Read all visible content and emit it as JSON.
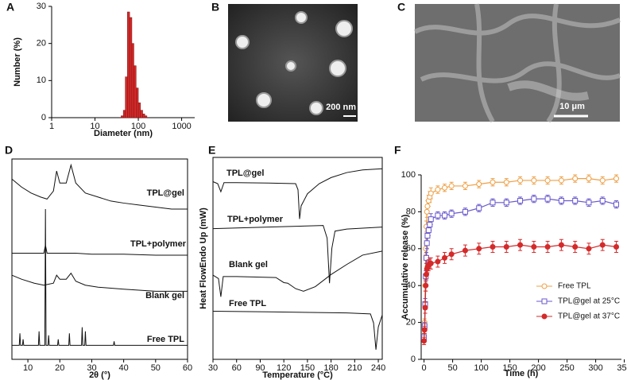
{
  "chart_data": [
    {
      "label": "A",
      "type": "histogram",
      "xlabel": "Diameter (nm)",
      "ylabel": "Number (%)",
      "xlog": true,
      "xlim": [
        1,
        2000
      ],
      "ylim": [
        0,
        30
      ],
      "xticks": [
        1,
        10,
        100,
        1000
      ],
      "yticks": [
        0,
        10,
        20,
        30
      ],
      "color": "#d42a2a",
      "frame": false,
      "bins": [
        40,
        45,
        50,
        56,
        63,
        71,
        79,
        89,
        100,
        112,
        126,
        141,
        158
      ],
      "counts": [
        0.5,
        2,
        11,
        28.5,
        27,
        20,
        14,
        8,
        4,
        2,
        1,
        0.5
      ]
    },
    {
      "label": "D",
      "type": "line",
      "xlabel": "2θ (°)",
      "xlim": [
        5,
        60
      ],
      "ylim": [
        0,
        100
      ],
      "xticks": [
        10,
        20,
        30,
        40,
        50,
        60
      ],
      "frame": true,
      "series": [
        {
          "name": "TPL@gel",
          "color": "#111111",
          "x": [
            5,
            8,
            11,
            14,
            16,
            18,
            19,
            20,
            22,
            23.5,
            25,
            28,
            32,
            36,
            40,
            45,
            50,
            55,
            60
          ],
          "values": [
            90,
            86,
            83,
            81,
            80,
            84,
            94,
            88,
            88,
            97,
            88,
            83,
            81,
            79,
            78,
            77,
            76,
            75,
            75
          ]
        },
        {
          "name": "TPL+polymer",
          "color": "#111111",
          "x": [
            5,
            10,
            15,
            15.5,
            16,
            20,
            25,
            30,
            40,
            50,
            60
          ],
          "values": [
            53,
            53,
            53,
            57,
            53,
            53,
            53,
            52.5,
            52.5,
            52,
            52
          ]
        },
        {
          "name": "Blank gel",
          "color": "#111111",
          "x": [
            5,
            8,
            12,
            15,
            18,
            19,
            20,
            22,
            23.5,
            25,
            28,
            32,
            40,
            50,
            60
          ],
          "values": [
            42,
            40,
            38,
            37,
            38,
            42,
            40,
            40,
            43,
            39,
            37,
            36,
            35,
            34,
            34
          ]
        },
        {
          "name": "Free TPL",
          "color": "#111111",
          "x": [
            5,
            7.3,
            7.5,
            7.7,
            8.3,
            8.5,
            8.7,
            13.3,
            13.5,
            13.7,
            15.3,
            15.5,
            15.7,
            16.3,
            16.5,
            16.7,
            19.3,
            19.5,
            19.7,
            22.8,
            23,
            23.2,
            26.8,
            27,
            27.2,
            27.8,
            28,
            28.2,
            36.8,
            37,
            37.2,
            60
          ],
          "values": [
            7,
            7,
            13,
            7,
            7,
            10,
            7,
            7,
            14,
            7,
            7,
            75,
            7,
            7,
            12,
            7,
            7,
            10,
            7,
            7,
            13,
            7,
            7,
            16,
            7,
            7,
            14,
            7,
            7,
            9,
            7,
            7
          ]
        }
      ]
    },
    {
      "label": "E",
      "type": "line",
      "xlabel": "Temperature (°C)",
      "ylabel": "Heat FlowEndo Up (mW)",
      "xlim": [
        30,
        245
      ],
      "ylim": [
        0,
        100
      ],
      "xticks": [
        30,
        60,
        90,
        120,
        150,
        180,
        210,
        240
      ],
      "frame": true,
      "series": [
        {
          "name": "TPL@gel",
          "color": "#111111",
          "x": [
            30,
            36,
            40,
            44,
            60,
            100,
            135,
            138,
            140,
            142,
            150,
            165,
            180,
            200,
            220,
            245
          ],
          "values": [
            88,
            87,
            83,
            87.5,
            87.5,
            87.3,
            87,
            84,
            69.5,
            76,
            82,
            87,
            90,
            92.5,
            93.8,
            94.4
          ]
        },
        {
          "name": "TPL+polymer",
          "color": "#111111",
          "x": [
            30,
            100,
            170,
            175,
            178,
            181,
            185,
            200,
            245
          ],
          "values": [
            64.7,
            65.5,
            66.3,
            60,
            37.7,
            55,
            63.5,
            64.5,
            65.5
          ]
        },
        {
          "name": "Blank gel",
          "color": "#111111",
          "x": [
            30,
            37,
            40,
            43,
            60,
            110,
            120,
            125,
            135,
            145,
            160,
            180,
            200,
            220,
            245
          ],
          "values": [
            41.7,
            40,
            31,
            41,
            41,
            40.5,
            38,
            37.7,
            35,
            33.7,
            36,
            42,
            47,
            51.6,
            53.6
          ]
        },
        {
          "name": "Free TPL",
          "color": "#111111",
          "x": [
            30,
            100,
            200,
            230,
            234,
            237,
            240,
            245
          ],
          "values": [
            23.8,
            23.5,
            23,
            22.5,
            18,
            4.8,
            16,
            22
          ]
        }
      ]
    },
    {
      "label": "F",
      "type": "line",
      "xlabel": "Time (h)",
      "ylabel": "Accumulative release (%)",
      "xlim": [
        -5,
        345
      ],
      "ylim": [
        0,
        100
      ],
      "xticks": [
        0,
        50,
        100,
        150,
        200,
        250,
        300,
        350
      ],
      "yticks": [
        0,
        20,
        40,
        60,
        80,
        100
      ],
      "frame": false,
      "legend": "lower right",
      "x": [
        0,
        1,
        2,
        3,
        4,
        5,
        6,
        8,
        10,
        12,
        24,
        36,
        48,
        72,
        96,
        120,
        144,
        168,
        192,
        216,
        240,
        264,
        288,
        312,
        336
      ],
      "series": [
        {
          "name": "Free TPL",
          "color": "#eea046",
          "marker": "circle-open",
          "values": [
            13,
            20,
            40,
            60,
            72,
            80,
            83,
            86,
            88,
            90,
            92,
            93,
            94,
            94,
            95,
            96,
            96,
            97,
            97,
            97,
            97,
            98,
            98,
            97,
            98
          ],
          "errors": [
            2,
            2,
            3,
            3,
            3,
            3,
            3,
            3,
            3,
            3,
            2,
            2,
            2,
            2,
            2,
            2,
            2,
            2,
            2,
            2,
            2,
            2,
            2,
            2,
            2
          ]
        },
        {
          "name": "TPL@gel at 25°C",
          "color": "#6a5acd",
          "marker": "square-open",
          "values": [
            12,
            18,
            30,
            45,
            55,
            63,
            67,
            70,
            73,
            76,
            78,
            78,
            79,
            80,
            82,
            85,
            85,
            86,
            87,
            87,
            86,
            86,
            85,
            86,
            84
          ],
          "errors": [
            2,
            2,
            3,
            3,
            3,
            3,
            3,
            3,
            3,
            3,
            2,
            2,
            2,
            2,
            2,
            2,
            2,
            2,
            2,
            2,
            2,
            2,
            2,
            2,
            2
          ]
        },
        {
          "name": "TPL@gel at 37°C",
          "color": "#d42a2a",
          "marker": "circle",
          "values": [
            10,
            16,
            28,
            40,
            46,
            49,
            50,
            51,
            52,
            52,
            53,
            55,
            57,
            59,
            60,
            61,
            61,
            62,
            61,
            61,
            62,
            61,
            60,
            62,
            61
          ],
          "errors": [
            2,
            2,
            3,
            3,
            3,
            3,
            3,
            3,
            3,
            3,
            3,
            3,
            3,
            3,
            3,
            3,
            3,
            3,
            3,
            3,
            3,
            3,
            3,
            3,
            3
          ]
        }
      ]
    }
  ],
  "images": [
    {
      "label": "B",
      "scale_bar": "200 nm"
    },
    {
      "label": "C",
      "scale_bar": "10 μm"
    }
  ]
}
